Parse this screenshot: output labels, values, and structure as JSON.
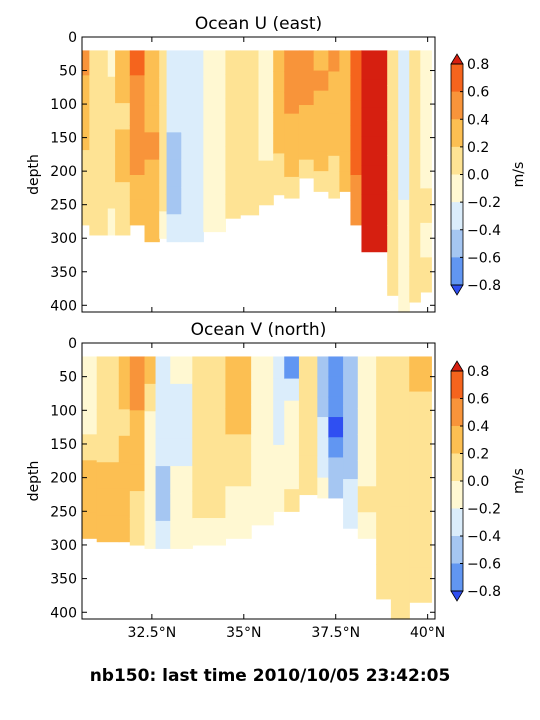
{
  "figure": {
    "suptitle": "nb150: last time 2010/10/05 23:42:05"
  },
  "colormap": {
    "levels": [
      -0.8,
      -0.6,
      -0.4,
      -0.2,
      0.0,
      0.2,
      0.4,
      0.6,
      0.8
    ],
    "colors": [
      "#2f4ff2",
      "#6196f2",
      "#a5c6f2",
      "#dbedfb",
      "#fff8d2",
      "#fee394",
      "#fcbf52",
      "#f8943a",
      "#f5641d",
      "#d61f10"
    ],
    "extend": "both"
  },
  "chart_data": [
    {
      "type": "heatmap",
      "title": "Ocean U (east)",
      "ylabel": "depth",
      "colorbar_label": "m/s",
      "x_ticks": [
        32.5,
        35,
        37.5,
        40
      ],
      "x_tick_labels": [
        "",
        "",
        "",
        ""
      ],
      "xlim": [
        30.6,
        40.2
      ],
      "y_ticks": [
        0,
        50,
        100,
        150,
        200,
        250,
        300,
        350,
        400
      ],
      "ylim": [
        410,
        0
      ],
      "inverted_y": true,
      "colorbar_ticks": [
        "0.8",
        "0.6",
        "0.4",
        "0.2",
        "0.0",
        "−0.2",
        "−0.4",
        "−0.6",
        "−0.8"
      ],
      "columns": [
        {
          "x0": 30.6,
          "x1": 30.8,
          "bottom": 280,
          "values": [
            0.45,
            0.35,
            0.2,
            0.2,
            0.15,
            0.1,
            0.05
          ]
        },
        {
          "x0": 30.8,
          "x1": 31.3,
          "bottom": 295,
          "values": [
            0.1,
            0.05,
            0.1,
            0.05,
            0.1,
            0.05,
            0.05
          ]
        },
        {
          "x0": 31.3,
          "x1": 31.5,
          "bottom": 295,
          "values": [
            -0.1,
            0.05,
            0.05,
            0.1,
            0.05,
            0.05,
            -0.1
          ]
        },
        {
          "x0": 31.5,
          "x1": 31.9,
          "bottom": 295,
          "values": [
            0.25,
            0.2,
            0.15,
            0.25,
            0.2,
            0.15,
            0.05
          ]
        },
        {
          "x0": 31.9,
          "x1": 32.3,
          "bottom": 280,
          "values": [
            0.6,
            0.55,
            0.5,
            0.45,
            0.45,
            0.35,
            0.3
          ]
        },
        {
          "x0": 32.3,
          "x1": 32.7,
          "bottom": 305,
          "values": [
            0.3,
            0.25,
            0.3,
            0.45,
            0.35,
            0.3,
            0.25
          ]
        },
        {
          "x0": 32.7,
          "x1": 32.9,
          "bottom": 300,
          "values": [
            0.05,
            0.1,
            0.05,
            0.0,
            0.05,
            0.0,
            -0.05
          ]
        },
        {
          "x0": 32.9,
          "x1": 33.3,
          "bottom": 305,
          "values": [
            -0.3,
            -0.35,
            -0.35,
            -0.45,
            -0.5,
            -0.45,
            -0.3
          ]
        },
        {
          "x0": 33.3,
          "x1": 33.9,
          "bottom": 305,
          "values": [
            -0.3,
            -0.25,
            -0.3,
            -0.3,
            -0.35,
            -0.3,
            -0.25
          ]
        },
        {
          "x0": 33.9,
          "x1": 34.5,
          "bottom": 290,
          "values": [
            -0.1,
            -0.15,
            -0.1,
            -0.15,
            -0.1,
            -0.05,
            -0.05
          ]
        },
        {
          "x0": 34.5,
          "x1": 34.9,
          "bottom": 270,
          "values": [
            0.05,
            0.1,
            0.05,
            0.0,
            0.05,
            0.05,
            0.0
          ]
        },
        {
          "x0": 34.9,
          "x1": 35.4,
          "bottom": 265,
          "values": [
            0.1,
            0.05,
            0.1,
            0.05,
            0.1,
            0.05,
            0.0
          ]
        },
        {
          "x0": 35.4,
          "x1": 35.8,
          "bottom": 250,
          "values": [
            -0.1,
            -0.15,
            -0.05,
            -0.1,
            -0.05,
            0.0,
            0.05
          ]
        },
        {
          "x0": 35.8,
          "x1": 36.1,
          "bottom": 235,
          "values": [
            0.3,
            0.35,
            0.3,
            0.25,
            0.2,
            0.15,
            0.1
          ]
        },
        {
          "x0": 36.1,
          "x1": 36.5,
          "bottom": 240,
          "values": [
            0.45,
            0.5,
            0.45,
            0.35,
            0.3,
            0.2,
            0.1
          ]
        },
        {
          "x0": 36.5,
          "x1": 36.9,
          "bottom": 210,
          "values": [
            0.55,
            0.5,
            0.45,
            0.35,
            0.25,
            0.2,
            0.1
          ]
        },
        {
          "x0": 36.9,
          "x1": 37.3,
          "bottom": 230,
          "values": [
            0.35,
            0.4,
            0.35,
            0.3,
            0.25,
            0.2,
            0.15
          ]
        },
        {
          "x0": 37.3,
          "x1": 37.6,
          "bottom": 240,
          "values": [
            0.4,
            0.35,
            0.3,
            0.3,
            0.2,
            0.15,
            0.1
          ]
        },
        {
          "x0": 37.6,
          "x1": 37.9,
          "bottom": 230,
          "values": [
            0.25,
            0.3,
            0.35,
            0.35,
            0.3,
            0.25,
            0.2
          ]
        },
        {
          "x0": 37.9,
          "x1": 38.2,
          "bottom": 280,
          "values": [
            0.6,
            0.65,
            0.7,
            0.65,
            0.6,
            0.55,
            0.5
          ]
        },
        {
          "x0": 38.2,
          "x1": 38.9,
          "bottom": 320,
          "values": [
            0.85,
            0.85,
            0.85,
            0.85,
            0.85,
            0.85,
            0.85
          ]
        },
        {
          "x0": 38.9,
          "x1": 39.2,
          "bottom": 385,
          "values": [
            0.05,
            0.0,
            0.05,
            0.0,
            0.05,
            0.0,
            0.0
          ]
        },
        {
          "x0": 39.2,
          "x1": 39.5,
          "bottom": 410,
          "values": [
            -0.3,
            -0.35,
            -0.35,
            -0.25,
            -0.2,
            -0.1,
            -0.05
          ]
        },
        {
          "x0": 39.5,
          "x1": 39.8,
          "bottom": 395,
          "values": [
            0.1,
            0.05,
            0.1,
            0.05,
            0.0,
            0.05,
            0.05
          ]
        },
        {
          "x0": 39.8,
          "x1": 40.1,
          "bottom": 380,
          "values": [
            -0.1,
            -0.05,
            -0.1,
            -0.05,
            0.0,
            -0.05,
            0.0
          ]
        }
      ]
    },
    {
      "type": "heatmap",
      "title": "Ocean V (north)",
      "ylabel": "depth",
      "colorbar_label": "m/s",
      "x_ticks": [
        32.5,
        35,
        37.5,
        40
      ],
      "x_tick_labels": [
        "32.5°N",
        "35°N",
        "37.5°N",
        "40°N"
      ],
      "xlim": [
        30.6,
        40.2
      ],
      "y_ticks": [
        0,
        50,
        100,
        150,
        200,
        250,
        300,
        350,
        400
      ],
      "ylim": [
        410,
        0
      ],
      "inverted_y": true,
      "colorbar_ticks": [
        "0.8",
        "0.6",
        "0.4",
        "0.2",
        "0.0",
        "−0.2",
        "−0.4",
        "−0.6",
        "−0.8"
      ],
      "columns": [
        {
          "x0": 30.6,
          "x1": 31.0,
          "bottom": 290,
          "values": [
            -0.1,
            -0.05,
            -0.1,
            0.1,
            0.25,
            0.3,
            0.25
          ]
        },
        {
          "x0": 31.0,
          "x1": 31.6,
          "bottom": 295,
          "values": [
            0.05,
            0.1,
            0.05,
            0.1,
            0.2,
            0.3,
            0.25
          ]
        },
        {
          "x0": 31.6,
          "x1": 31.9,
          "bottom": 295,
          "values": [
            0.3,
            0.25,
            0.1,
            0.2,
            0.3,
            0.25,
            0.2
          ]
        },
        {
          "x0": 31.9,
          "x1": 32.3,
          "bottom": 300,
          "values": [
            0.5,
            0.45,
            0.3,
            0.25,
            0.2,
            0.15,
            0.1
          ]
        },
        {
          "x0": 32.3,
          "x1": 32.6,
          "bottom": 305,
          "values": [
            0.2,
            0.1,
            -0.05,
            -0.05,
            -0.1,
            -0.1,
            -0.05
          ]
        },
        {
          "x0": 32.6,
          "x1": 33.0,
          "bottom": 305,
          "values": [
            -0.3,
            -0.35,
            -0.3,
            -0.35,
            -0.45,
            -0.5,
            -0.35
          ]
        },
        {
          "x0": 33.0,
          "x1": 33.6,
          "bottom": 305,
          "values": [
            -0.2,
            -0.25,
            -0.3,
            -0.25,
            -0.2,
            -0.15,
            -0.1
          ]
        },
        {
          "x0": 33.6,
          "x1": 34.5,
          "bottom": 300,
          "values": [
            0.05,
            0.1,
            0.15,
            0.1,
            0.05,
            0.0,
            -0.05
          ]
        },
        {
          "x0": 34.5,
          "x1": 35.2,
          "bottom": 290,
          "values": [
            0.3,
            0.25,
            0.2,
            0.1,
            0.05,
            -0.05,
            -0.1
          ]
        },
        {
          "x0": 35.2,
          "x1": 35.8,
          "bottom": 270,
          "values": [
            -0.1,
            -0.15,
            -0.1,
            -0.05,
            -0.1,
            -0.05,
            -0.05
          ]
        },
        {
          "x0": 35.8,
          "x1": 36.1,
          "bottom": 250,
          "values": [
            -0.3,
            -0.35,
            -0.3,
            -0.25,
            -0.15,
            -0.1,
            -0.05
          ]
        },
        {
          "x0": 36.1,
          "x1": 36.5,
          "bottom": 250,
          "values": [
            -0.7,
            -0.3,
            -0.2,
            -0.15,
            -0.1,
            -0.05,
            0.0
          ]
        },
        {
          "x0": 36.5,
          "x1": 37.0,
          "bottom": 225,
          "values": [
            0.1,
            0.15,
            0.1,
            0.05,
            0.0,
            0.0,
            0.0
          ]
        },
        {
          "x0": 37.0,
          "x1": 37.3,
          "bottom": 230,
          "values": [
            -0.5,
            -0.55,
            -0.45,
            -0.4,
            -0.3,
            -0.25,
            -0.2
          ]
        },
        {
          "x0": 37.3,
          "x1": 37.7,
          "bottom": 230,
          "values": [
            -0.7,
            -0.75,
            -0.8,
            -0.85,
            -0.7,
            -0.6,
            -0.5
          ]
        },
        {
          "x0": 37.7,
          "x1": 38.1,
          "bottom": 275,
          "values": [
            -0.5,
            -0.55,
            -0.55,
            -0.5,
            -0.45,
            -0.4,
            -0.35
          ]
        },
        {
          "x0": 38.1,
          "x1": 38.6,
          "bottom": 290,
          "values": [
            -0.1,
            -0.05,
            -0.1,
            -0.05,
            -0.05,
            0.0,
            -0.05
          ]
        },
        {
          "x0": 38.6,
          "x1": 39.0,
          "bottom": 380,
          "values": [
            0.05,
            0.1,
            0.05,
            0.1,
            0.05,
            0.05,
            0.05
          ]
        },
        {
          "x0": 39.0,
          "x1": 39.5,
          "bottom": 410,
          "values": [
            0.05,
            0.1,
            0.1,
            0.05,
            0.05,
            0.05,
            0.05
          ]
        },
        {
          "x0": 39.5,
          "x1": 40.1,
          "bottom": 385,
          "values": [
            0.25,
            0.15,
            0.1,
            0.05,
            0.1,
            0.05,
            0.05
          ]
        }
      ]
    }
  ]
}
